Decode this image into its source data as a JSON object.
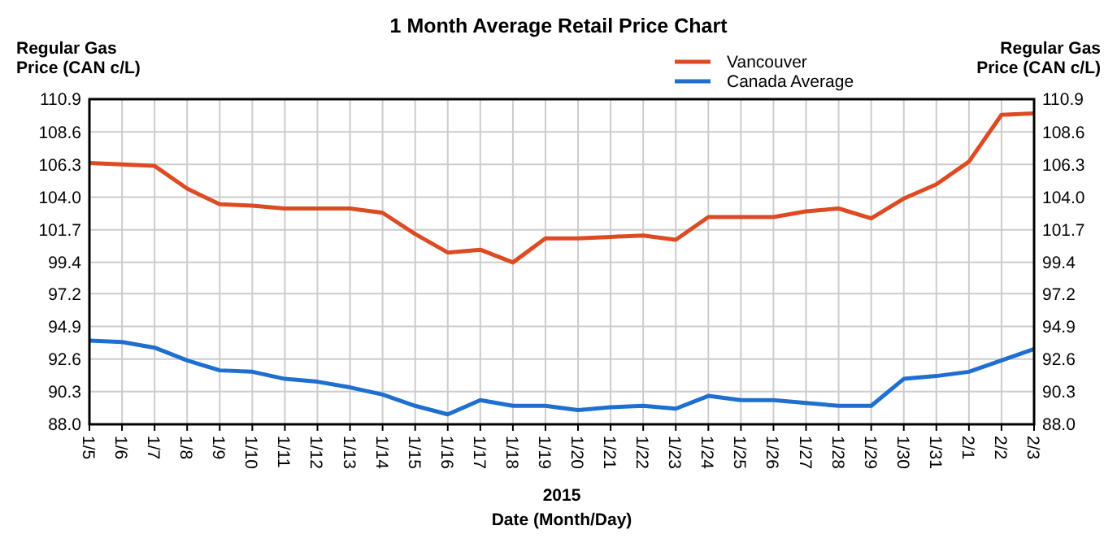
{
  "chart_data": {
    "type": "line",
    "title": "1 Month Average Retail Price Chart",
    "xlabel": "Date (Month/Day)",
    "ylabel": "Regular Gas\nPrice (CAN c/L)",
    "y2label": "Regular Gas\nPrice (CAN c/L)",
    "annotations": [
      "2015"
    ],
    "categories": [
      "1/5",
      "1/6",
      "1/7",
      "1/8",
      "1/9",
      "1/10",
      "1/11",
      "1/12",
      "1/13",
      "1/14",
      "1/15",
      "1/16",
      "1/17",
      "1/18",
      "1/19",
      "1/20",
      "1/21",
      "1/22",
      "1/23",
      "1/24",
      "1/25",
      "1/26",
      "1/27",
      "1/28",
      "1/29",
      "1/30",
      "1/31",
      "2/1",
      "2/2",
      "2/3"
    ],
    "series": [
      {
        "name": "Vancouver",
        "color": "#dd4b22",
        "values": [
          106.4,
          106.3,
          106.2,
          104.6,
          103.5,
          103.4,
          103.2,
          103.2,
          103.2,
          102.9,
          101.4,
          100.1,
          100.3,
          99.4,
          101.1,
          101.1,
          101.2,
          101.3,
          101.0,
          102.6,
          102.6,
          102.6,
          103.0,
          103.2,
          102.5,
          103.9,
          104.9,
          106.5,
          109.8,
          109.9
        ]
      },
      {
        "name": "Canada Average",
        "color": "#1f6fd1",
        "values": [
          93.9,
          93.8,
          93.4,
          92.5,
          91.8,
          91.7,
          91.2,
          91.0,
          90.6,
          90.1,
          89.3,
          88.7,
          89.7,
          89.3,
          89.3,
          89.0,
          89.2,
          89.3,
          89.1,
          90.0,
          89.7,
          89.7,
          89.5,
          89.3,
          89.3,
          91.2,
          91.4,
          91.7,
          92.5,
          93.3
        ]
      }
    ],
    "ylim": [
      88.0,
      110.9
    ],
    "yticks": [
      {
        "value": 88,
        "label": "88.0"
      },
      90.3,
      92.6,
      94.9,
      97.2,
      99.4,
      101.7,
      {
        "value": 104,
        "label": "104.0"
      },
      106.3,
      108.6,
      110.9
    ],
    "y2lim": [
      88.0,
      110.9
    ],
    "y2ticks": [
      {
        "value": 88,
        "label": "88.0"
      },
      90.3,
      92.6,
      94.9,
      97.2,
      99.4,
      101.7,
      {
        "value": 104,
        "label": "104.0"
      },
      106.3,
      108.6,
      110.9
    ],
    "grid": true,
    "legend": "top",
    "marker": "none",
    "line_style": "solid"
  }
}
